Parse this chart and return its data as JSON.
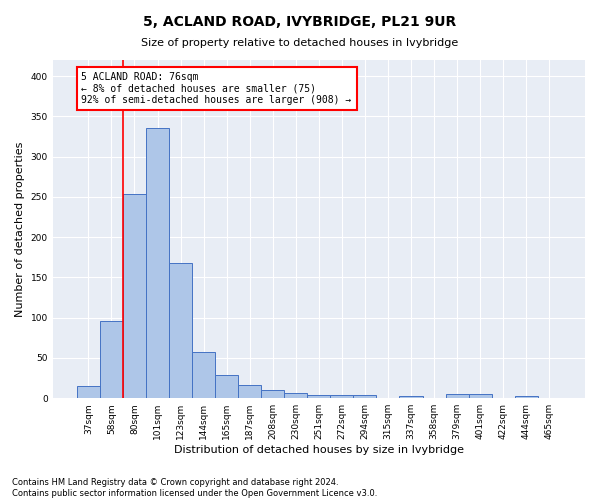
{
  "title": "5, ACLAND ROAD, IVYBRIDGE, PL21 9UR",
  "subtitle": "Size of property relative to detached houses in Ivybridge",
  "xlabel": "Distribution of detached houses by size in Ivybridge",
  "ylabel": "Number of detached properties",
  "bar_labels": [
    "37sqm",
    "58sqm",
    "80sqm",
    "101sqm",
    "123sqm",
    "144sqm",
    "165sqm",
    "187sqm",
    "208sqm",
    "230sqm",
    "251sqm",
    "272sqm",
    "294sqm",
    "315sqm",
    "337sqm",
    "358sqm",
    "379sqm",
    "401sqm",
    "422sqm",
    "444sqm",
    "465sqm"
  ],
  "bar_values": [
    15,
    96,
    253,
    335,
    168,
    57,
    29,
    17,
    10,
    6,
    4,
    4,
    4,
    0,
    3,
    0,
    5,
    5,
    0,
    3,
    0
  ],
  "bar_color": "#aec6e8",
  "bar_edge_color": "#4472c4",
  "ylim": [
    0,
    420
  ],
  "annotation_text_line1": "5 ACLAND ROAD: 76sqm",
  "annotation_text_line2": "← 8% of detached houses are smaller (75)",
  "annotation_text_line3": "92% of semi-detached houses are larger (908) →",
  "footnote1": "Contains HM Land Registry data © Crown copyright and database right 2024.",
  "footnote2": "Contains public sector information licensed under the Open Government Licence v3.0.",
  "background_color": "#e8edf5",
  "grid_color": "#ffffff",
  "title_fontsize": 10,
  "subtitle_fontsize": 8,
  "ylabel_fontsize": 8,
  "xlabel_fontsize": 8,
  "tick_fontsize": 6.5,
  "annotation_fontsize": 7,
  "footnote_fontsize": 6
}
